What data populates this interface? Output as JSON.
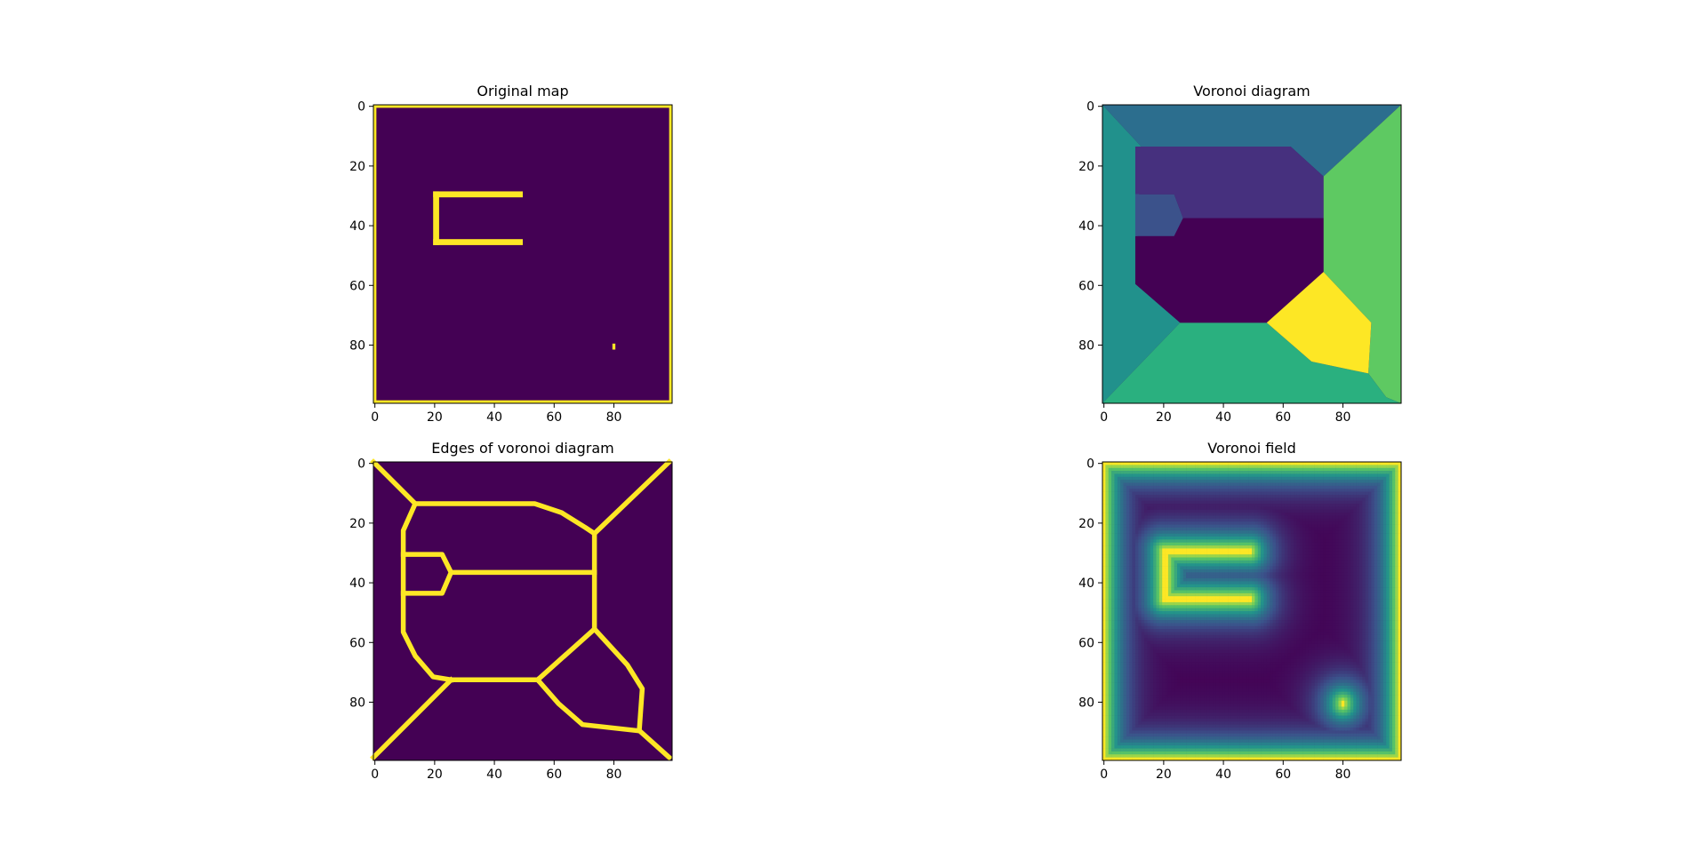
{
  "figure": {
    "background": "#ffffff"
  },
  "chart_data": [
    {
      "type": "heatmap",
      "title": "Original map",
      "xlabel": "",
      "ylabel": "",
      "xlim": [
        0,
        100
      ],
      "ylim": [
        100,
        0
      ],
      "xticks": [
        "0",
        "20",
        "40",
        "60",
        "80"
      ],
      "yticks": [
        "0",
        "20",
        "40",
        "60",
        "80"
      ],
      "grid": false,
      "colormap": "viridis",
      "colors": [
        "#440154",
        "#fde725"
      ],
      "layers": [
        {
          "kind": "border",
          "value": 1
        },
        {
          "kind": "hline",
          "y": 29,
          "x0": 20,
          "x1": 49,
          "value": 1
        },
        {
          "kind": "hline",
          "y": 45,
          "x0": 20,
          "x1": 49,
          "value": 1
        },
        {
          "kind": "vline",
          "x": 20,
          "y0": 29,
          "y1": 46,
          "value": 1
        },
        {
          "kind": "point",
          "x": 80,
          "y": 80,
          "value": 1
        }
      ]
    },
    {
      "type": "heatmap",
      "title": "Voronoi diagram",
      "xlabel": "",
      "ylabel": "",
      "xlim": [
        0,
        100
      ],
      "ylim": [
        100,
        0
      ],
      "xticks": [
        "0",
        "20",
        "40",
        "60",
        "80"
      ],
      "yticks": [
        "0",
        "20",
        "40",
        "60",
        "80"
      ],
      "grid": false,
      "colormap": "viridis",
      "regions": [
        {
          "label": 1,
          "color": "#2c6e8e",
          "points": [
            [
              0,
              0
            ],
            [
              100,
              0
            ],
            [
              74,
              24
            ],
            [
              63,
              14
            ],
            [
              13,
              14
            ],
            [
              0,
              0
            ]
          ]
        },
        {
          "label": 2,
          "color": "#21918c",
          "points": [
            [
              0,
              0
            ],
            [
              13,
              14
            ],
            [
              11,
              60
            ],
            [
              26,
              73
            ],
            [
              0,
              100
            ]
          ]
        },
        {
          "label": 3,
          "color": "#5ec962",
          "points": [
            [
              100,
              0
            ],
            [
              100,
              100
            ],
            [
              95,
              98
            ],
            [
              89,
              90
            ],
            [
              90,
              73
            ],
            [
              74,
              56
            ],
            [
              74,
              24
            ]
          ]
        },
        {
          "label": 4,
          "color": "#2ab07f",
          "points": [
            [
              0,
              100
            ],
            [
              26,
              73
            ],
            [
              55,
              73
            ],
            [
              70,
              86
            ],
            [
              89,
              90
            ],
            [
              95,
              98
            ],
            [
              100,
              100
            ]
          ]
        },
        {
          "label": 5,
          "color": "#46307e",
          "points": [
            [
              11,
              14
            ],
            [
              63,
              14
            ],
            [
              74,
              24
            ],
            [
              74,
              38
            ],
            [
              27,
              38
            ],
            [
              24,
              30
            ],
            [
              11,
              30
            ]
          ]
        },
        {
          "label": 6,
          "color": "#3b528b",
          "points": [
            [
              11,
              30
            ],
            [
              24,
              30
            ],
            [
              27,
              38
            ],
            [
              24,
              44
            ],
            [
              11,
              44
            ]
          ]
        },
        {
          "label": 7,
          "color": "#440154",
          "points": [
            [
              11,
              44
            ],
            [
              24,
              44
            ],
            [
              27,
              38
            ],
            [
              74,
              38
            ],
            [
              74,
              56
            ],
            [
              55,
              73
            ],
            [
              26,
              73
            ],
            [
              11,
              60
            ]
          ]
        },
        {
          "label": 8,
          "color": "#fde725",
          "points": [
            [
              74,
              56
            ],
            [
              90,
              73
            ],
            [
              89,
              90
            ],
            [
              70,
              86
            ],
            [
              55,
              73
            ]
          ]
        }
      ]
    },
    {
      "type": "heatmap",
      "title": "Edges of voronoi diagram",
      "xlabel": "",
      "ylabel": "",
      "xlim": [
        0,
        100
      ],
      "ylim": [
        100,
        0
      ],
      "xticks": [
        "0",
        "20",
        "40",
        "60",
        "80"
      ],
      "yticks": [
        "0",
        "20",
        "40",
        "60",
        "80"
      ],
      "grid": false,
      "colormap": "viridis",
      "colors": [
        "#440154",
        "#fde725"
      ],
      "edges": [
        [
          [
            0,
            0
          ],
          [
            14,
            14
          ]
        ],
        [
          [
            99,
            0
          ],
          [
            74,
            24
          ]
        ],
        [
          [
            0,
            99
          ],
          [
            26,
            73
          ]
        ],
        [
          [
            99,
            99
          ],
          [
            89,
            90
          ]
        ],
        [
          [
            14,
            14
          ],
          [
            54,
            14
          ],
          [
            63,
            17
          ],
          [
            71,
            22
          ],
          [
            74,
            24
          ]
        ],
        [
          [
            14,
            14
          ],
          [
            10,
            23
          ],
          [
            10,
            57
          ],
          [
            14,
            65
          ],
          [
            20,
            72
          ],
          [
            26,
            73
          ]
        ],
        [
          [
            74,
            24
          ],
          [
            74,
            56
          ]
        ],
        [
          [
            10,
            31
          ],
          [
            23,
            31
          ],
          [
            26,
            37
          ]
        ],
        [
          [
            10,
            44
          ],
          [
            23,
            44
          ],
          [
            26,
            37
          ]
        ],
        [
          [
            26,
            37
          ],
          [
            74,
            37
          ]
        ],
        [
          [
            26,
            73
          ],
          [
            55,
            73
          ]
        ],
        [
          [
            74,
            56
          ],
          [
            55,
            73
          ]
        ],
        [
          [
            55,
            73
          ],
          [
            62,
            81
          ],
          [
            70,
            88
          ],
          [
            88,
            90
          ]
        ],
        [
          [
            74,
            56
          ],
          [
            85,
            68
          ],
          [
            90,
            76
          ],
          [
            89,
            90
          ]
        ]
      ]
    },
    {
      "type": "heatmap",
      "title": "Voronoi field",
      "xlabel": "",
      "ylabel": "",
      "xlim": [
        0,
        100
      ],
      "ylim": [
        100,
        0
      ],
      "xticks": [
        "0",
        "20",
        "40",
        "60",
        "80"
      ],
      "yticks": [
        "0",
        "20",
        "40",
        "60",
        "80"
      ],
      "grid": false,
      "colormap": "viridis",
      "colors": [
        "#440154",
        "#3b528b",
        "#21918c",
        "#5ec962",
        "#fde725"
      ],
      "field_sources": [
        {
          "kind": "border"
        },
        {
          "kind": "hline",
          "y": 29,
          "x0": 20,
          "x1": 49
        },
        {
          "kind": "hline",
          "y": 45,
          "x0": 20,
          "x1": 49
        },
        {
          "kind": "vline",
          "x": 20,
          "y0": 29,
          "y1": 46
        },
        {
          "kind": "point",
          "x": 80,
          "y": 80
        }
      ],
      "field_falloff": 6
    }
  ]
}
